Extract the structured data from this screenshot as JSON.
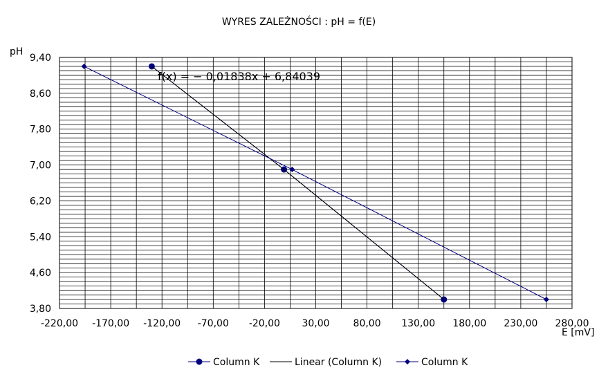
{
  "chart_data": {
    "type": "scatter",
    "title": "WYRES ZALEŻNOŚCI :  pH = f(E)",
    "xlabel": "E [mV]",
    "ylabel": "pH",
    "xlim": [
      -220,
      280
    ],
    "ylim": [
      3.8,
      9.4
    ],
    "x_ticks": [
      "-220,00",
      "-170,00",
      "-120,00",
      "-70,00",
      "-20,00",
      "30,00",
      "80,00",
      "130,00",
      "180,00",
      "230,00",
      "280,00"
    ],
    "y_ticks": [
      "3,80",
      "4,60",
      "5,40",
      "6,20",
      "7,00",
      "7,80",
      "8,60",
      "9,40"
    ],
    "grid": true,
    "series": [
      {
        "name": "Column K",
        "marker": "circle",
        "line": true,
        "color": "#000080",
        "points": [
          [
            -130,
            9.2
          ],
          [
            -1,
            6.9
          ],
          [
            155,
            4.0
          ]
        ]
      },
      {
        "name": "Linear (Column K)",
        "marker": "none",
        "line": true,
        "color": "#000000",
        "trendline_of": "Column K",
        "slope": -0.01838,
        "intercept": 6.84039
      },
      {
        "name": "Column K",
        "marker": "diamond",
        "line": true,
        "color": "#000080",
        "points": [
          [
            -196,
            9.2
          ],
          [
            7,
            6.9
          ],
          [
            255,
            4.0
          ]
        ]
      }
    ],
    "annotation": "f(x) = − 0,01838x + 6,84039",
    "legend_position": "bottom"
  }
}
